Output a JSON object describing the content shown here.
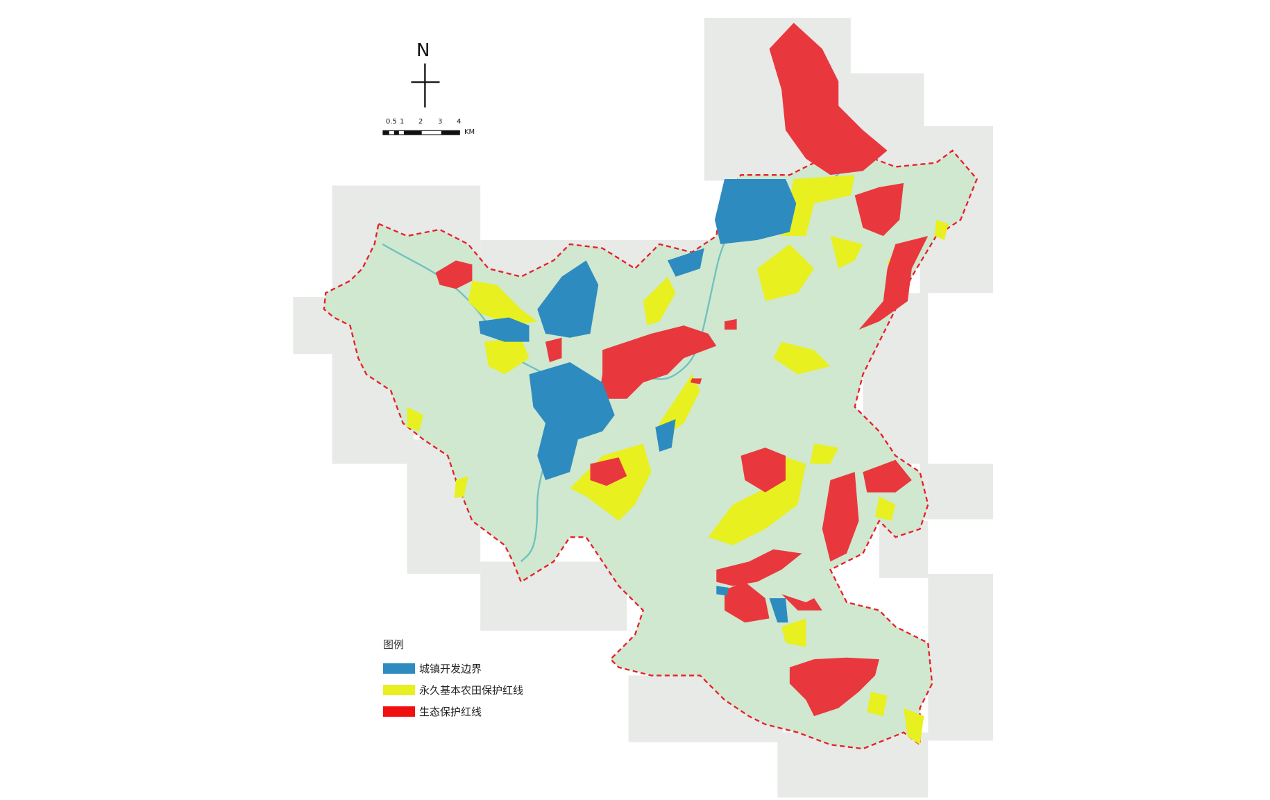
{
  "map": {
    "north_label": "N",
    "scale_bar": {
      "ticks": [
        "0.5",
        "1",
        "2",
        "3",
        "4"
      ],
      "unit": "KM"
    },
    "colors": {
      "urban_boundary": "#2e8bc0",
      "farmland": "#e8f020",
      "ecological": "#e8383e",
      "region_fill": "#cfe8cf",
      "boundary_line": "#e8202a",
      "terrain": "#e6e8e6"
    }
  },
  "legend": {
    "title": "图例",
    "items": [
      {
        "label": "城镇开发边界",
        "color": "#2e8bc0"
      },
      {
        "label": "永久基本农田保护红线",
        "color": "#e8f020"
      },
      {
        "label": "生态保护红线",
        "color": "#f01010"
      }
    ]
  }
}
